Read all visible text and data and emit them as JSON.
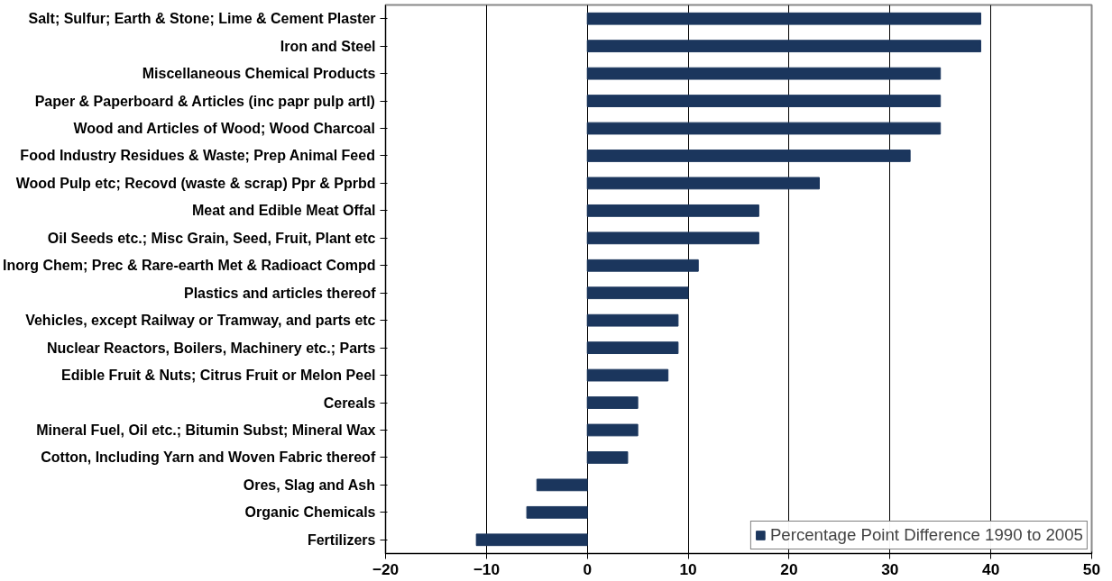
{
  "chart_data": {
    "type": "bar",
    "orientation": "horizontal",
    "categories": [
      "Salt; Sulfur; Earth & Stone; Lime & Cement Plaster",
      "Iron and Steel",
      "Miscellaneous Chemical Products",
      "Paper & Paperboard & Articles (inc papr pulp artl)",
      "Wood and Articles of Wood; Wood Charcoal",
      "Food Industry Residues & Waste; Prep Animal Feed",
      "Wood Pulp etc; Recovd (waste & scrap) Ppr & Pprbd",
      "Meat and Edible Meat Offal",
      "Oil Seeds etc.; Misc Grain, Seed, Fruit, Plant etc",
      "Inorg Chem; Prec & Rare-earth Met & Radioact Compd",
      "Plastics and articles thereof",
      "Vehicles, except Railway or Tramway, and parts etc",
      "Nuclear Reactors, Boilers, Machinery etc.; Parts",
      "Edible Fruit & Nuts; Citrus Fruit or Melon Peel",
      "Cereals",
      "Mineral Fuel, Oil etc.; Bitumin Subst; Mineral Wax",
      "Cotton, Including Yarn and Woven Fabric thereof",
      "Ores, Slag and Ash",
      "Organic Chemicals",
      "Fertilizers"
    ],
    "series": [
      {
        "name": "Percentage Point Difference 1990 to 2005",
        "color": "#1b365d",
        "values": [
          39,
          39,
          35,
          35,
          35,
          32,
          23,
          17,
          17,
          11,
          10,
          9,
          9,
          8,
          5,
          5,
          4,
          -5,
          -6,
          -11
        ]
      }
    ],
    "xlim": [
      -20,
      50
    ],
    "xticks": [
      -20,
      -10,
      0,
      10,
      20,
      30,
      40,
      50
    ],
    "grid": "x",
    "legend": "bottom right"
  }
}
